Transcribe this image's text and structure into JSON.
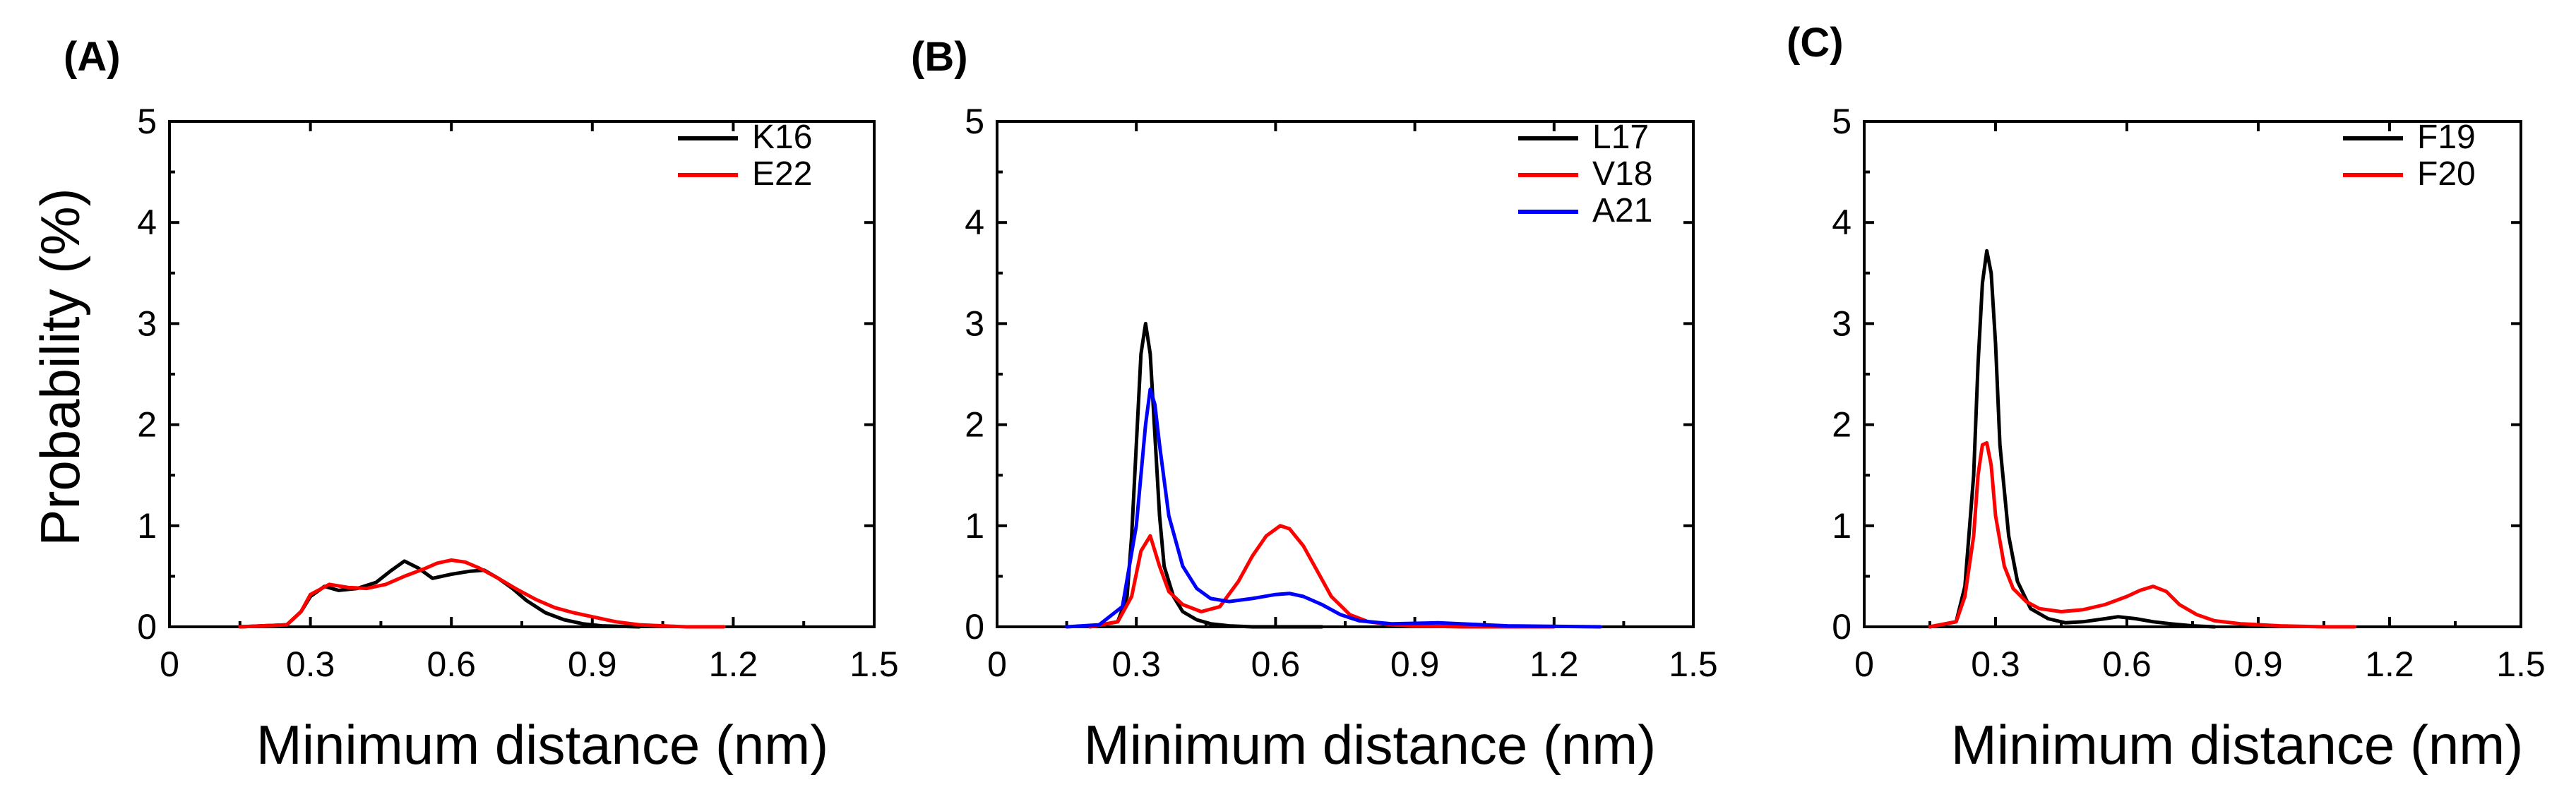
{
  "ylabel": "Probability (%)",
  "chart_data": [
    {
      "panel_label": "(A)",
      "type": "line",
      "xlabel": "Minimum distance (nm)",
      "ylabel": "Probability (%)",
      "xlim": [
        0,
        1.5
      ],
      "ylim": [
        0,
        5
      ],
      "x_ticks": [
        "0",
        "0.3",
        "0.6",
        "0.9",
        "1.2",
        "1.5"
      ],
      "y_ticks": [
        "0",
        "1",
        "2",
        "3",
        "4",
        "5"
      ],
      "legend_position": "top-right",
      "series": [
        {
          "name": "K16",
          "color": "#000000",
          "x": [
            0.15,
            0.25,
            0.28,
            0.3,
            0.33,
            0.36,
            0.4,
            0.44,
            0.47,
            0.5,
            0.53,
            0.56,
            0.6,
            0.64,
            0.67,
            0.7,
            0.73,
            0.76,
            0.8,
            0.84,
            0.88,
            0.92,
            1.0
          ],
          "y": [
            0.0,
            0.02,
            0.15,
            0.3,
            0.4,
            0.36,
            0.38,
            0.44,
            0.55,
            0.65,
            0.58,
            0.48,
            0.52,
            0.55,
            0.56,
            0.48,
            0.38,
            0.26,
            0.14,
            0.07,
            0.03,
            0.01,
            0.0
          ]
        },
        {
          "name": "E22",
          "color": "#ff0000",
          "x": [
            0.15,
            0.25,
            0.28,
            0.3,
            0.34,
            0.38,
            0.42,
            0.46,
            0.5,
            0.54,
            0.57,
            0.6,
            0.63,
            0.66,
            0.7,
            0.74,
            0.78,
            0.82,
            0.86,
            0.9,
            0.95,
            1.0,
            1.05,
            1.1,
            1.18
          ],
          "y": [
            0.0,
            0.02,
            0.15,
            0.32,
            0.42,
            0.39,
            0.38,
            0.42,
            0.5,
            0.57,
            0.63,
            0.66,
            0.64,
            0.58,
            0.48,
            0.37,
            0.27,
            0.19,
            0.14,
            0.1,
            0.05,
            0.02,
            0.01,
            0.0,
            0.0
          ]
        }
      ]
    },
    {
      "panel_label": "(B)",
      "type": "line",
      "xlabel": "Minimum distance (nm)",
      "ylabel": "",
      "xlim": [
        0,
        1.5
      ],
      "ylim": [
        0,
        5
      ],
      "x_ticks": [
        "0",
        "0.3",
        "0.6",
        "0.9",
        "1.2",
        "1.5"
      ],
      "y_ticks": [
        "0",
        "1",
        "2",
        "3",
        "4",
        "5"
      ],
      "legend_position": "top-right",
      "series": [
        {
          "name": "L17",
          "color": "#000000",
          "x": [
            0.2,
            0.26,
            0.28,
            0.29,
            0.3,
            0.31,
            0.32,
            0.33,
            0.34,
            0.35,
            0.36,
            0.38,
            0.4,
            0.43,
            0.46,
            0.5,
            0.55,
            0.6,
            0.7
          ],
          "y": [
            0.0,
            0.05,
            0.3,
            0.9,
            1.8,
            2.7,
            3.0,
            2.7,
            1.9,
            1.1,
            0.6,
            0.3,
            0.15,
            0.07,
            0.03,
            0.01,
            0.0,
            0.0,
            0.0
          ]
        },
        {
          "name": "V18",
          "color": "#ff0000",
          "x": [
            0.2,
            0.26,
            0.29,
            0.31,
            0.33,
            0.35,
            0.37,
            0.4,
            0.44,
            0.48,
            0.52,
            0.55,
            0.58,
            0.61,
            0.63,
            0.66,
            0.69,
            0.72,
            0.76,
            0.8,
            0.85,
            0.9,
            1.0,
            1.2
          ],
          "y": [
            0.0,
            0.05,
            0.3,
            0.75,
            0.9,
            0.6,
            0.35,
            0.22,
            0.15,
            0.2,
            0.45,
            0.7,
            0.9,
            1.0,
            0.97,
            0.8,
            0.55,
            0.3,
            0.12,
            0.05,
            0.02,
            0.01,
            0.0,
            0.0
          ]
        },
        {
          "name": "A21",
          "color": "#0000ff",
          "x": [
            0.15,
            0.22,
            0.27,
            0.3,
            0.32,
            0.33,
            0.34,
            0.35,
            0.37,
            0.4,
            0.43,
            0.46,
            0.5,
            0.55,
            0.6,
            0.63,
            0.66,
            0.7,
            0.74,
            0.78,
            0.85,
            0.95,
            1.0,
            1.1,
            1.3
          ],
          "y": [
            0.0,
            0.02,
            0.2,
            1.0,
            2.0,
            2.35,
            2.2,
            1.8,
            1.1,
            0.6,
            0.38,
            0.28,
            0.25,
            0.28,
            0.32,
            0.33,
            0.3,
            0.22,
            0.12,
            0.06,
            0.03,
            0.04,
            0.03,
            0.01,
            0.0
          ]
        }
      ]
    },
    {
      "panel_label": "(C)",
      "type": "line",
      "xlabel": "Minimum distance (nm)",
      "ylabel": "",
      "xlim": [
        0,
        1.5
      ],
      "ylim": [
        0,
        5
      ],
      "x_ticks": [
        "0",
        "0.3",
        "0.6",
        "0.9",
        "1.2",
        "1.5"
      ],
      "y_ticks": [
        "0",
        "1",
        "2",
        "3",
        "4",
        "5"
      ],
      "legend_position": "top-right",
      "series": [
        {
          "name": "F19",
          "color": "#000000",
          "x": [
            0.15,
            0.21,
            0.23,
            0.25,
            0.26,
            0.27,
            0.28,
            0.29,
            0.3,
            0.31,
            0.33,
            0.35,
            0.38,
            0.42,
            0.46,
            0.5,
            0.55,
            0.58,
            0.62,
            0.66,
            0.7,
            0.75,
            0.8
          ],
          "y": [
            0.0,
            0.05,
            0.4,
            1.5,
            2.6,
            3.4,
            3.72,
            3.5,
            2.8,
            1.8,
            0.9,
            0.45,
            0.18,
            0.08,
            0.04,
            0.05,
            0.08,
            0.1,
            0.08,
            0.05,
            0.03,
            0.01,
            0.0
          ]
        },
        {
          "name": "F20",
          "color": "#ff0000",
          "x": [
            0.15,
            0.21,
            0.23,
            0.25,
            0.26,
            0.27,
            0.28,
            0.29,
            0.3,
            0.32,
            0.34,
            0.37,
            0.4,
            0.45,
            0.5,
            0.55,
            0.6,
            0.63,
            0.66,
            0.69,
            0.72,
            0.76,
            0.8,
            0.86,
            0.95,
            1.05,
            1.12
          ],
          "y": [
            0.0,
            0.05,
            0.3,
            0.9,
            1.5,
            1.8,
            1.82,
            1.6,
            1.1,
            0.6,
            0.38,
            0.25,
            0.18,
            0.15,
            0.17,
            0.22,
            0.3,
            0.36,
            0.4,
            0.35,
            0.22,
            0.12,
            0.06,
            0.03,
            0.01,
            0.0,
            0.0
          ]
        }
      ]
    }
  ]
}
